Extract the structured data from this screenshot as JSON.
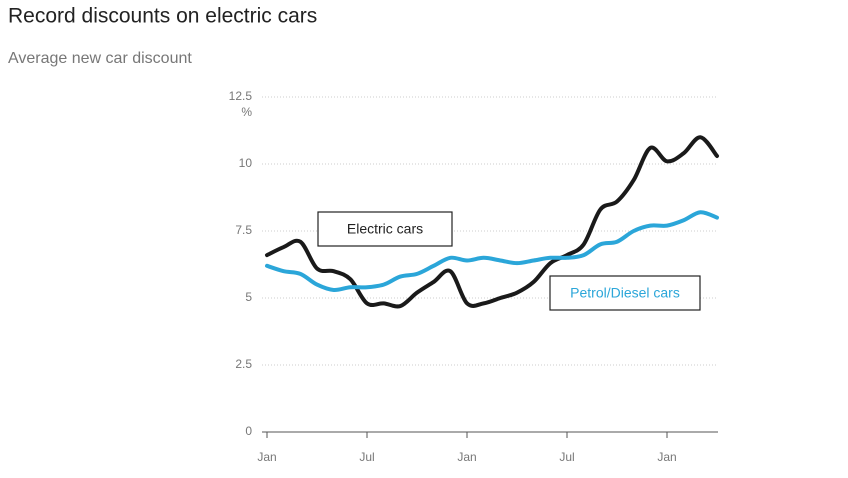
{
  "chart_data": {
    "type": "line",
    "title": "Record discounts on electric cars",
    "subtitle": "Average new car discount",
    "y_unit": "%",
    "categories": [
      "Jan",
      null,
      null,
      null,
      null,
      null,
      "Jul",
      null,
      null,
      null,
      null,
      null,
      "Jan",
      null,
      null,
      null,
      null,
      null,
      "Jul",
      null,
      null,
      null,
      null,
      null,
      "Jan",
      null,
      null,
      null
    ],
    "series": [
      {
        "name": "Electric cars",
        "color": "#1a1a1a",
        "values": [
          6.6,
          6.9,
          7.1,
          6.1,
          6.0,
          5.7,
          4.8,
          4.8,
          4.7,
          5.2,
          5.6,
          6.0,
          4.8,
          4.8,
          5.0,
          5.2,
          5.6,
          6.3,
          6.6,
          7.0,
          8.3,
          8.6,
          9.4,
          10.6,
          10.1,
          10.4,
          11.0,
          10.3
        ]
      },
      {
        "name": "Petrol/Diesel cars",
        "color": "#2ba6d9",
        "values": [
          6.2,
          6.0,
          5.9,
          5.5,
          5.3,
          5.4,
          5.4,
          5.5,
          5.8,
          5.9,
          6.2,
          6.5,
          6.4,
          6.5,
          6.4,
          6.3,
          6.4,
          6.5,
          6.5,
          6.6,
          7.0,
          7.1,
          7.5,
          7.7,
          7.7,
          7.9,
          8.2,
          8.0
        ]
      }
    ],
    "ylim": [
      0,
      12.5
    ],
    "yticks": [
      0,
      2.5,
      5,
      7.5,
      10,
      12.5
    ],
    "grid": true
  }
}
